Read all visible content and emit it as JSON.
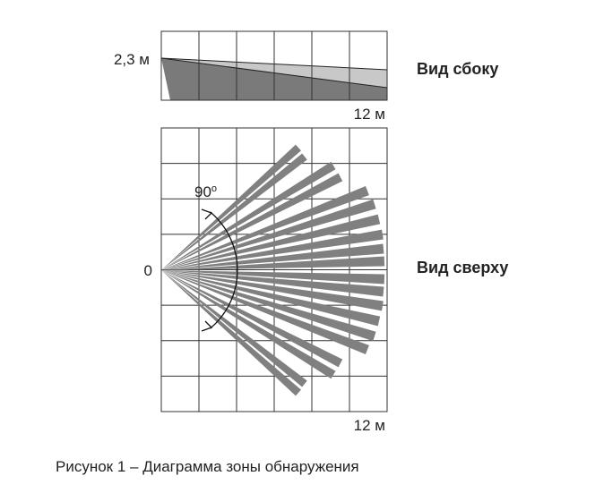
{
  "side_view": {
    "height_label": "2,3 м",
    "distance_label": "12 м",
    "title": "Вид сбоку"
  },
  "top_view": {
    "origin_label": "0",
    "angle_label": "90",
    "angle_unit": "о",
    "distance_label": "12 м",
    "title": "Вид сверху"
  },
  "caption": "Рисунок 1 – Диаграмма зоны обнаружения"
}
